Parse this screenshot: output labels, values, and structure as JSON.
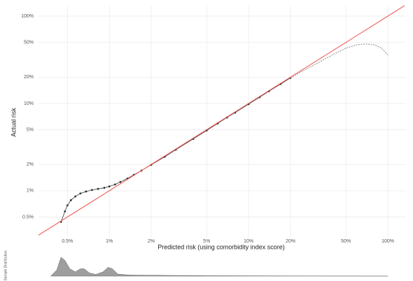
{
  "chart_data": [
    {
      "type": "line",
      "xlabel": "Predicted risk (using comorbidity index score)",
      "ylabel": "Actual risk",
      "log_x": true,
      "log_y": true,
      "grid": true,
      "identity_line": true,
      "identity_color": "#f0605a",
      "xlim": [
        0.31,
        135
      ],
      "ylim": [
        0.29,
        132
      ],
      "xticks": [
        {
          "value": 0.5,
          "label": "0.5%"
        },
        {
          "value": 1,
          "label": "1%"
        },
        {
          "value": 2,
          "label": "2%"
        },
        {
          "value": 5,
          "label": "5%"
        },
        {
          "value": 10,
          "label": "10%"
        },
        {
          "value": 20,
          "label": "20%"
        },
        {
          "value": 50,
          "label": "50%"
        },
        {
          "value": 100,
          "label": "100%"
        }
      ],
      "yticks": [
        {
          "value": 0.5,
          "label": "0.5%"
        },
        {
          "value": 1,
          "label": "1%"
        },
        {
          "value": 2,
          "label": "2%"
        },
        {
          "value": 5,
          "label": "5%"
        },
        {
          "value": 10,
          "label": "10%"
        },
        {
          "value": 20,
          "label": "20%"
        },
        {
          "value": 50,
          "label": "50%"
        },
        {
          "value": 100,
          "label": "100%"
        }
      ],
      "series": [
        {
          "color": "#333333",
          "markers": true,
          "x": [
            0.45,
            0.48,
            0.5,
            0.53,
            0.57,
            0.62,
            0.68,
            0.75,
            0.83,
            0.92,
            1.0,
            1.1,
            1.2,
            1.35,
            1.5,
            1.7,
            2,
            2.5,
            3,
            4,
            5,
            6,
            7,
            8,
            10,
            12,
            14,
            17,
            20
          ],
          "values": [
            0.44,
            0.58,
            0.68,
            0.78,
            0.86,
            0.93,
            0.98,
            1.02,
            1.05,
            1.08,
            1.12,
            1.18,
            1.26,
            1.38,
            1.52,
            1.7,
            1.98,
            2.45,
            2.95,
            3.92,
            4.9,
            5.9,
            6.9,
            7.85,
            9.8,
            11.8,
            13.8,
            16.7,
            19.6
          ]
        },
        {
          "color": "#9a9a9a",
          "markers": false,
          "dashed": true,
          "x": [
            20,
            25,
            30,
            40,
            50,
            60,
            70,
            80,
            90,
            100
          ],
          "values": [
            19.6,
            24,
            28,
            36,
            43,
            47,
            48,
            47,
            43,
            36
          ]
        }
      ]
    },
    {
      "type": "area",
      "ylabel": "Sample Distribution",
      "log_x": true,
      "color": "#9e9e9e",
      "xlim": [
        0.31,
        135
      ],
      "ylim": [
        0,
        1
      ],
      "x": [
        0.38,
        0.42,
        0.45,
        0.48,
        0.52,
        0.57,
        0.62,
        0.66,
        0.72,
        0.8,
        0.9,
        0.98,
        1.05,
        1.15,
        1.4,
        2,
        3,
        5,
        10,
        20,
        50,
        100
      ],
      "values": [
        0,
        0.3,
        0.9,
        0.75,
        0.35,
        0.2,
        0.35,
        0.35,
        0.15,
        0.08,
        0.2,
        0.42,
        0.35,
        0.1,
        0.05,
        0.04,
        0.03,
        0.02,
        0.015,
        0.01,
        0.005,
        0
      ]
    }
  ]
}
